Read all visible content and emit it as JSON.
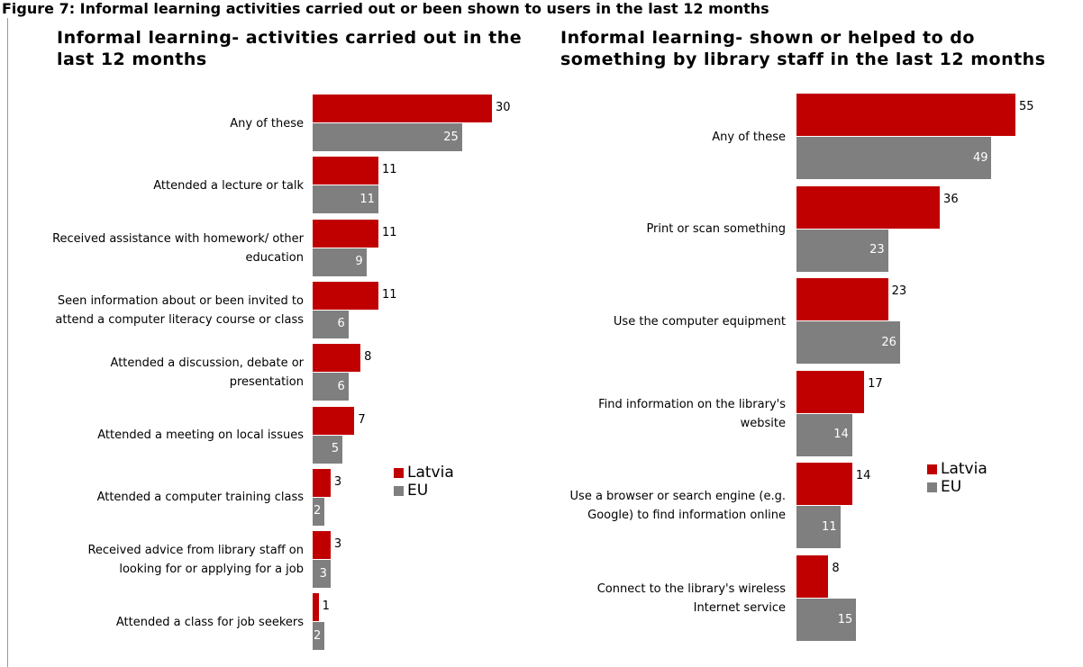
{
  "title": "Figure 7: Informal learning activities carried out or been shown to users in the last 12 months",
  "chart_data": [
    {
      "type": "barh",
      "title": "Informal learning- activities carried out in the last 12 months",
      "categories": [
        "Any of these",
        "Attended a lecture or talk",
        "Received assistance with homework/ other education",
        "Seen information about or been invited to attend a computer literacy course or class",
        "Attended a discussion, debate or presentation",
        "Attended a meeting on local issues",
        "Attended a computer training class",
        "Received advice from library staff on looking for or applying for a job",
        "Attended a class for job seekers"
      ],
      "series": [
        {
          "name": "Latvia",
          "color": "#c00000",
          "values": [
            30,
            11,
            11,
            11,
            8,
            7,
            3,
            3,
            1
          ]
        },
        {
          "name": "EU",
          "color": "#7f7f7f",
          "values": [
            25,
            11,
            9,
            6,
            6,
            5,
            2,
            3,
            2
          ]
        }
      ],
      "xlim": [
        0,
        30
      ],
      "legend": "right"
    },
    {
      "type": "barh",
      "title": "Informal learning- shown or helped to do something by library staff in the last 12 months",
      "categories": [
        "Any of these",
        "Print or scan something",
        "Use the computer equipment",
        "Find information on the library's website",
        "Use a browser or search engine (e.g. Google) to find information online",
        "Connect to the library's wireless Internet service"
      ],
      "series": [
        {
          "name": "Latvia",
          "color": "#c00000",
          "values": [
            55,
            36,
            23,
            17,
            14,
            8
          ]
        },
        {
          "name": "EU",
          "color": "#7f7f7f",
          "values": [
            49,
            23,
            26,
            14,
            11,
            15
          ]
        }
      ],
      "xlim": [
        0,
        55
      ],
      "legend": "right"
    }
  ]
}
